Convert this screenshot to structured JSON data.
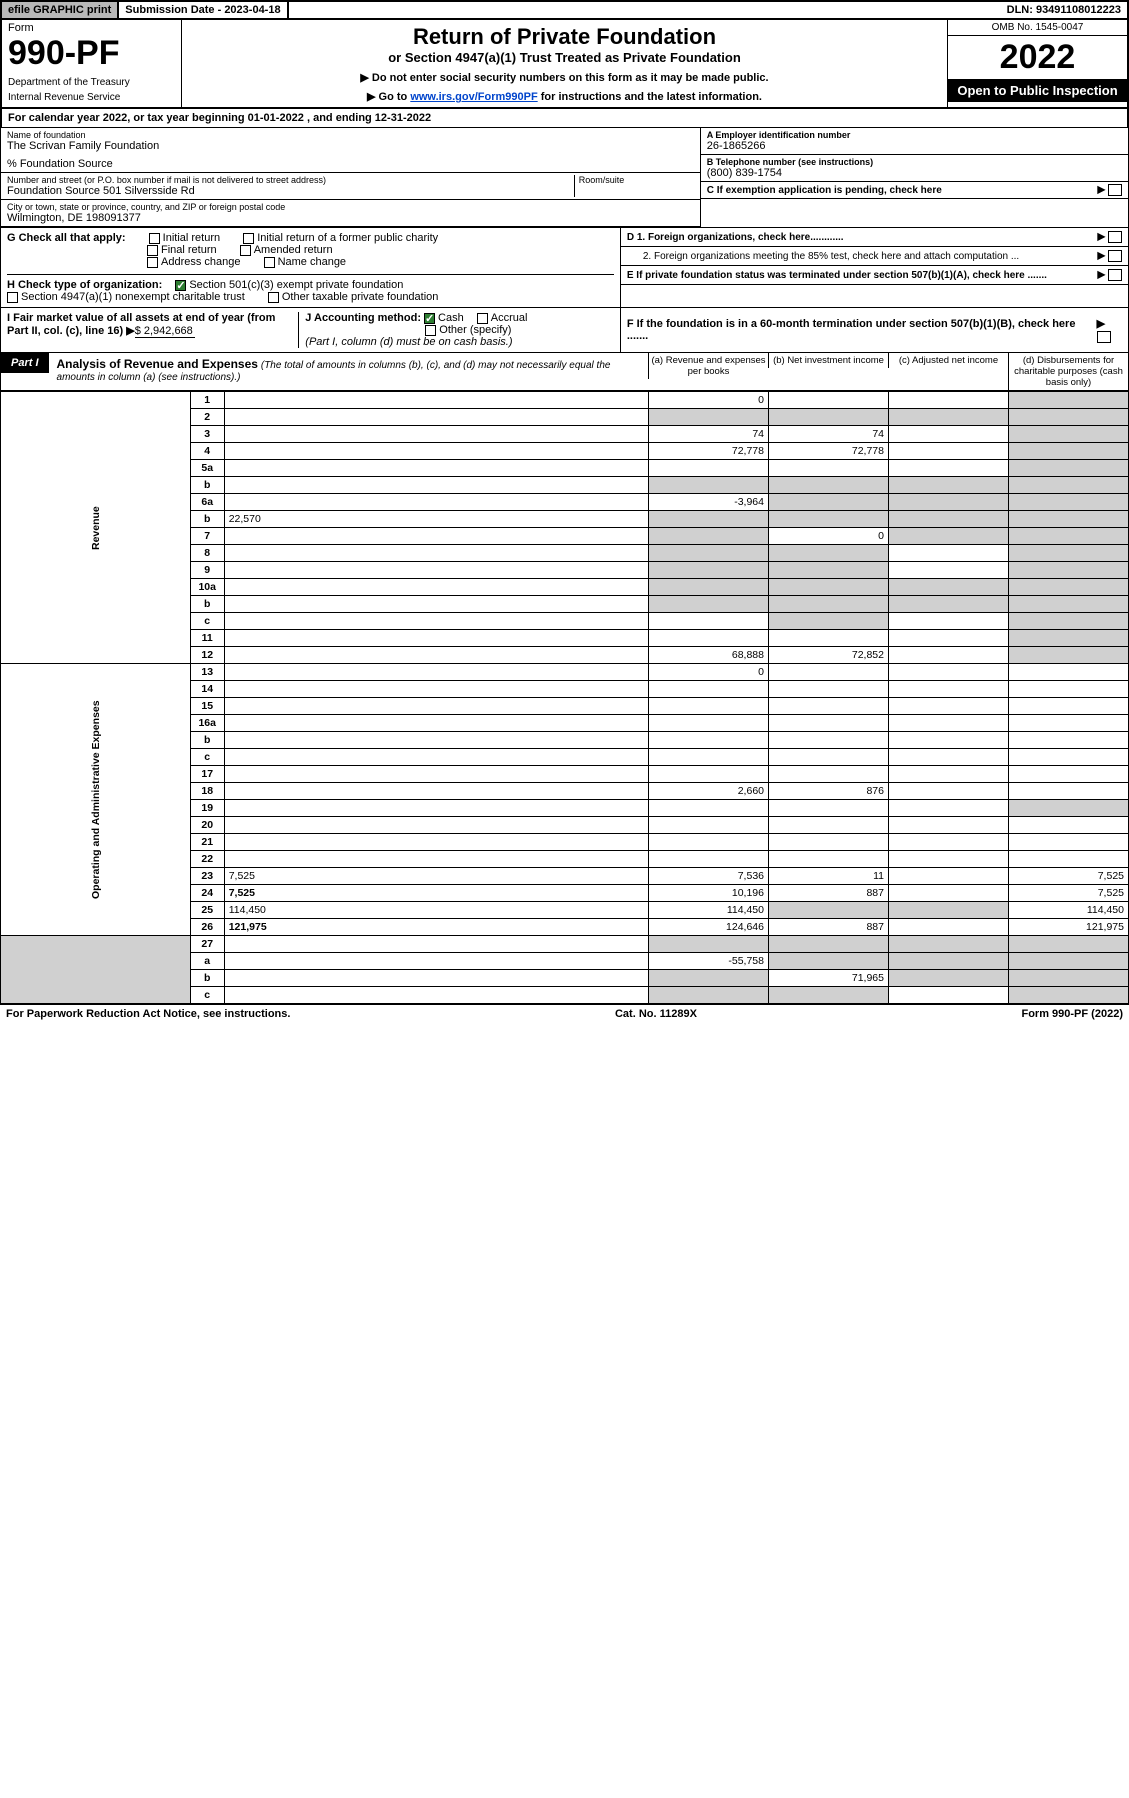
{
  "topbar": {
    "efile": "efile GRAPHIC print",
    "sub_label": "Submission Date - 2023-04-18",
    "dln": "DLN: 93491108012223"
  },
  "header": {
    "form_word": "Form",
    "form_num": "990-PF",
    "dept": "Department of the Treasury",
    "irs": "Internal Revenue Service",
    "title": "Return of Private Foundation",
    "subtitle": "or Section 4947(a)(1) Trust Treated as Private Foundation",
    "note1": "▶ Do not enter social security numbers on this form as it may be made public.",
    "note2_pre": "▶ Go to ",
    "note2_link": "www.irs.gov/Form990PF",
    "note2_post": " for instructions and the latest information.",
    "omb": "OMB No. 1545-0047",
    "year": "2022",
    "open": "Open to Public Inspection"
  },
  "cal_year": "For calendar year 2022, or tax year beginning 01-01-2022                      , and ending 12-31-2022",
  "entity": {
    "name_label": "Name of foundation",
    "name": "The Scrivan Family Foundation",
    "care_of": "% Foundation Source",
    "addr_label": "Number and street (or P.O. box number if mail is not delivered to street address)",
    "addr": "Foundation Source 501 Silversside Rd",
    "room_label": "Room/suite",
    "city_label": "City or town, state or province, country, and ZIP or foreign postal code",
    "city": "Wilmington, DE  198091377",
    "ein_label": "A Employer identification number",
    "ein": "26-1865266",
    "tel_label": "B Telephone number (see instructions)",
    "tel": "(800) 839-1754",
    "c_label": "C If exemption application is pending, check here",
    "d1": "D 1. Foreign organizations, check here............",
    "d2": "2. Foreign organizations meeting the 85% test, check here and attach computation ...",
    "e_label": "E  If private foundation status was terminated under section 507(b)(1)(A), check here .......",
    "f_label": "F  If the foundation is in a 60-month termination under section 507(b)(1)(B), check here ......."
  },
  "g": {
    "label": "G Check all that apply:",
    "opts": [
      "Initial return",
      "Initial return of a former public charity",
      "Final return",
      "Amended return",
      "Address change",
      "Name change"
    ]
  },
  "h": {
    "label": "H Check type of organization:",
    "opt1": "Section 501(c)(3) exempt private foundation",
    "opt2": "Section 4947(a)(1) nonexempt charitable trust",
    "opt3": "Other taxable private foundation"
  },
  "i": {
    "label": "I Fair market value of all assets at end of year (from Part II, col. (c), line 16)",
    "val": "$  2,942,668"
  },
  "j": {
    "label": "J Accounting method:",
    "cash": "Cash",
    "accrual": "Accrual",
    "other": "Other (specify)",
    "note": "(Part I, column (d) must be on cash basis.)"
  },
  "part1": {
    "label": "Part I",
    "title": "Analysis of Revenue and Expenses",
    "sub": "(The total of amounts in columns (b), (c), and (d) may not necessarily equal the amounts in column (a) (see instructions).)",
    "col_a": "(a)  Revenue and expenses per books",
    "col_b": "(b)  Net investment income",
    "col_c": "(c)  Adjusted net income",
    "col_d": "(d)  Disbursements for charitable purposes (cash basis only)"
  },
  "side": {
    "revenue": "Revenue",
    "expenses": "Operating and Administrative Expenses"
  },
  "rows": [
    {
      "n": "1",
      "d": "",
      "a": "0",
      "b": "",
      "c": "",
      "shade_d": true
    },
    {
      "n": "2",
      "d": "",
      "a": "",
      "b": "",
      "c": "",
      "shade_all": true,
      "bold_not": true
    },
    {
      "n": "3",
      "d": "",
      "a": "74",
      "b": "74",
      "c": "",
      "shade_d": true
    },
    {
      "n": "4",
      "d": "",
      "a": "72,778",
      "b": "72,778",
      "c": "",
      "shade_d": true
    },
    {
      "n": "5a",
      "d": "",
      "a": "",
      "b": "",
      "c": "",
      "shade_d": true
    },
    {
      "n": "b",
      "d": "",
      "a": "",
      "b": "",
      "c": "",
      "shade_all": true,
      "inline_box": true
    },
    {
      "n": "6a",
      "d": "",
      "a": "-3,964",
      "b": "",
      "c": "",
      "shade_bcd": true
    },
    {
      "n": "b",
      "d": "",
      "a": "",
      "b": "",
      "c": "",
      "shade_all": true,
      "inline_val": "22,570"
    },
    {
      "n": "7",
      "d": "",
      "a": "",
      "b": "0",
      "c": "",
      "shade_a": true,
      "shade_cd": true
    },
    {
      "n": "8",
      "d": "",
      "a": "",
      "b": "",
      "c": "",
      "shade_ab": true,
      "shade_d": true
    },
    {
      "n": "9",
      "d": "",
      "a": "",
      "b": "",
      "c": "",
      "shade_ab": true,
      "shade_d": true
    },
    {
      "n": "10a",
      "d": "",
      "a": "",
      "b": "",
      "c": "",
      "shade_all": true,
      "inline_box": true
    },
    {
      "n": "b",
      "d": "",
      "a": "",
      "b": "",
      "c": "",
      "shade_all": true,
      "inline_box": true
    },
    {
      "n": "c",
      "d": "",
      "a": "",
      "b": "",
      "c": "",
      "shade_b": true,
      "shade_d": true
    },
    {
      "n": "11",
      "d": "",
      "a": "",
      "b": "",
      "c": "",
      "shade_d": true
    },
    {
      "n": "12",
      "d": "",
      "a": "68,888",
      "b": "72,852",
      "c": "",
      "bold": true,
      "shade_d": true
    }
  ],
  "exp_rows": [
    {
      "n": "13",
      "d": "",
      "a": "0",
      "b": "",
      "c": ""
    },
    {
      "n": "14",
      "d": "",
      "a": "",
      "b": "",
      "c": ""
    },
    {
      "n": "15",
      "d": "",
      "a": "",
      "b": "",
      "c": ""
    },
    {
      "n": "16a",
      "d": "",
      "a": "",
      "b": "",
      "c": ""
    },
    {
      "n": "b",
      "d": "",
      "a": "",
      "b": "",
      "c": ""
    },
    {
      "n": "c",
      "d": "",
      "a": "",
      "b": "",
      "c": ""
    },
    {
      "n": "17",
      "d": "",
      "a": "",
      "b": "",
      "c": ""
    },
    {
      "n": "18",
      "d": "",
      "a": "2,660",
      "b": "876",
      "c": ""
    },
    {
      "n": "19",
      "d": "",
      "a": "",
      "b": "",
      "c": "",
      "shade_d": true
    },
    {
      "n": "20",
      "d": "",
      "a": "",
      "b": "",
      "c": ""
    },
    {
      "n": "21",
      "d": "",
      "a": "",
      "b": "",
      "c": ""
    },
    {
      "n": "22",
      "d": "",
      "a": "",
      "b": "",
      "c": ""
    },
    {
      "n": "23",
      "d": "7,525",
      "a": "7,536",
      "b": "11",
      "c": ""
    },
    {
      "n": "24",
      "d": "7,525",
      "a": "10,196",
      "b": "887",
      "c": "",
      "bold": true
    },
    {
      "n": "25",
      "d": "114,450",
      "a": "114,450",
      "b": "",
      "c": "",
      "shade_bc": true
    },
    {
      "n": "26",
      "d": "121,975",
      "a": "124,646",
      "b": "887",
      "c": "",
      "bold": true
    }
  ],
  "bottom_rows": [
    {
      "n": "27",
      "d": "",
      "a": "",
      "b": "",
      "c": "",
      "shade_all": true
    },
    {
      "n": "a",
      "d": "",
      "a": "-55,758",
      "b": "",
      "c": "",
      "bold": true,
      "shade_bcd": true
    },
    {
      "n": "b",
      "d": "",
      "a": "",
      "b": "71,965",
      "c": "",
      "bold": true,
      "shade_a": true,
      "shade_cd": true
    },
    {
      "n": "c",
      "d": "",
      "a": "",
      "b": "",
      "c": "",
      "bold": true,
      "shade_ab": true,
      "shade_d": true
    }
  ],
  "footer": {
    "left": "For Paperwork Reduction Act Notice, see instructions.",
    "mid": "Cat. No. 11289X",
    "right": "Form 990-PF (2022)"
  },
  "colors": {
    "shade": "#d0d0d0",
    "black": "#000000",
    "link": "#0044cc",
    "check": "#2e7d32"
  }
}
